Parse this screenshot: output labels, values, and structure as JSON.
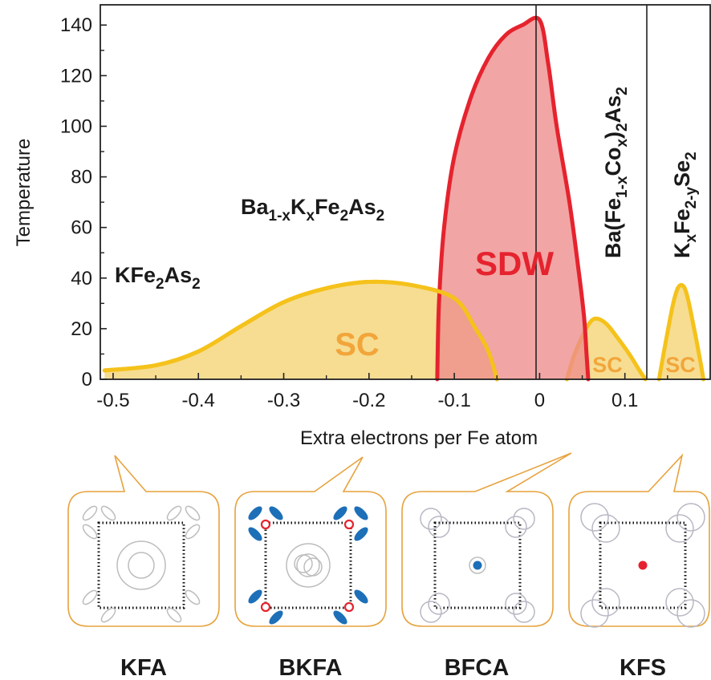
{
  "chart_data": {
    "type": "area",
    "ylabel": "Temperature",
    "xlabel": "Extra electrons per Fe atom",
    "xlim": [
      -0.515,
      0.2
    ],
    "ylim": [
      0,
      148
    ],
    "x_ticks": [
      "-0.5",
      "-0.4",
      "-0.3",
      "-0.2",
      "-0.1",
      "0",
      "0.1"
    ],
    "x_tick_values": [
      -0.5,
      -0.4,
      -0.3,
      -0.2,
      -0.1,
      0,
      0.1
    ],
    "y_ticks": [
      "0",
      "20",
      "40",
      "60",
      "80",
      "100",
      "120",
      "140"
    ],
    "y_tick_values": [
      0,
      20,
      40,
      60,
      80,
      100,
      120,
      140
    ],
    "dividers": [
      0,
      0.13
    ],
    "colors": {
      "sc_fill": "#f5d77f",
      "sc_line": "#f5c21b",
      "sdw_fill": "#ee8c8c",
      "sdw_line": "#e5232e",
      "sc_text": "#f2a53a",
      "sdw_text": "#e5232e"
    },
    "regions": [
      {
        "label": "SC",
        "kind": "sc",
        "points": [
          [
            -0.51,
            3.5
          ],
          [
            -0.45,
            5.5
          ],
          [
            -0.4,
            11
          ],
          [
            -0.35,
            21
          ],
          [
            -0.3,
            30.5
          ],
          [
            -0.25,
            36
          ],
          [
            -0.2,
            38.5
          ],
          [
            -0.15,
            37.2
          ],
          [
            -0.1,
            32
          ],
          [
            -0.075,
            20
          ],
          [
            -0.06,
            11
          ],
          [
            -0.05,
            0
          ]
        ]
      },
      {
        "label": "SDW",
        "kind": "sdw",
        "points": [
          [
            -0.12,
            0
          ],
          [
            -0.118,
            30
          ],
          [
            -0.112,
            60
          ],
          [
            -0.1,
            88
          ],
          [
            -0.08,
            112
          ],
          [
            -0.06,
            127
          ],
          [
            -0.04,
            136
          ],
          [
            -0.02,
            140
          ],
          [
            0,
            142
          ],
          [
            0.01,
            125
          ],
          [
            0.02,
            100
          ],
          [
            0.035,
            70
          ],
          [
            0.045,
            45
          ],
          [
            0.052,
            25
          ],
          [
            0.055,
            10
          ],
          [
            0.057,
            0
          ]
        ]
      },
      {
        "label": "SC",
        "kind": "sc",
        "points": [
          [
            0.032,
            0
          ],
          [
            0.04,
            9
          ],
          [
            0.05,
            17
          ],
          [
            0.058,
            22
          ],
          [
            0.066,
            24
          ],
          [
            0.078,
            22
          ],
          [
            0.09,
            17
          ],
          [
            0.105,
            10
          ],
          [
            0.118,
            3
          ],
          [
            0.124,
            0
          ]
        ]
      },
      {
        "label": "SC",
        "kind": "sc",
        "points": [
          [
            0.14,
            0
          ],
          [
            0.148,
            15
          ],
          [
            0.156,
            29
          ],
          [
            0.162,
            36
          ],
          [
            0.168,
            37
          ],
          [
            0.173,
            33
          ],
          [
            0.18,
            22
          ],
          [
            0.188,
            8
          ],
          [
            0.192,
            0
          ]
        ]
      }
    ]
  },
  "labels": {
    "sc_main": "SC",
    "sdw": "SDW",
    "sc_bfca": "SC",
    "sc_kfs": "SC",
    "kfa_formula": {
      "a": "KFe",
      "s1": "2",
      "b": "As",
      "s2": "2"
    },
    "bkfa_formula": {
      "a": "Ba",
      "s1": "1-x",
      "b": "K",
      "s2": "x",
      "c": "Fe",
      "s3": "2",
      "d": "As",
      "s4": "2"
    },
    "bfca_formula": {
      "a": "Ba(Fe",
      "s1": "1-x",
      "b": "Co",
      "s2": "x",
      "c": ")",
      "s3": "2",
      "d": "As",
      "s4": "2"
    },
    "kfs_formula": {
      "a": "K",
      "s1": "x",
      "b": "Fe",
      "s2": "2-y",
      "c": "Se",
      "s3": "2"
    }
  },
  "panels": [
    {
      "label": "KFA",
      "pointer": "left"
    },
    {
      "label": "BKFA",
      "pointer": "right"
    },
    {
      "label": "BFCA",
      "pointer": "right-long"
    },
    {
      "label": "KFS",
      "pointer": "right"
    }
  ]
}
